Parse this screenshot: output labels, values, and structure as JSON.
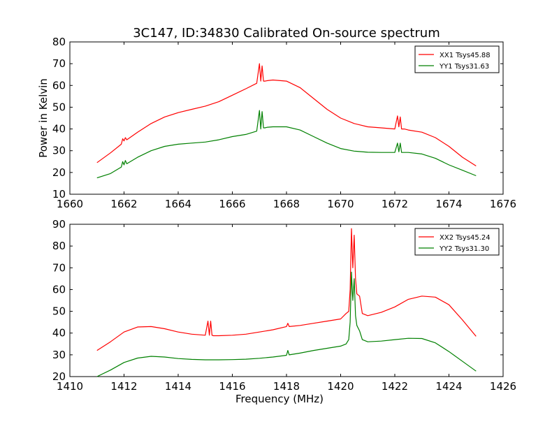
{
  "figure_title": "3C147, ID:34830 Calibrated On-source spectrum",
  "colors": {
    "xx": "#ff0000",
    "yy": "#008000",
    "axis": "#000000"
  },
  "chart_data": [
    {
      "type": "line",
      "xlabel": "",
      "ylabel": "Power in Kelvin",
      "xlim": [
        1660,
        1676
      ],
      "ylim": [
        10,
        80
      ],
      "xticks": [
        1660,
        1662,
        1664,
        1666,
        1668,
        1670,
        1672,
        1674,
        1676
      ],
      "yticks": [
        10,
        20,
        30,
        40,
        50,
        60,
        70,
        80
      ],
      "legend_position": "top-right",
      "series": [
        {
          "name": "XX1 Tsys45.88",
          "color": "#ff0000",
          "x": [
            1661,
            1661.5,
            1661.9,
            1661.95,
            1662.0,
            1662.05,
            1662.1,
            1662.5,
            1663,
            1663.5,
            1664,
            1664.5,
            1665,
            1665.5,
            1666,
            1666.5,
            1666.9,
            1667.0,
            1667.05,
            1667.1,
            1667.15,
            1667.2,
            1667.3,
            1667.5,
            1668,
            1668.5,
            1669,
            1669.5,
            1670,
            1670.5,
            1671,
            1671.5,
            1672,
            1672.1,
            1672.15,
            1672.2,
            1672.25,
            1672.3,
            1672.35,
            1672.5,
            1673,
            1673.5,
            1674,
            1674.5,
            1675
          ],
          "y": [
            24.5,
            29,
            33,
            35.5,
            34.5,
            36,
            35,
            38.5,
            42.5,
            45.5,
            47.5,
            49,
            50.5,
            52.5,
            55.5,
            58.5,
            61,
            70,
            62,
            69,
            62,
            62,
            62.2,
            62.5,
            62,
            59,
            54,
            49,
            45,
            42.5,
            41,
            40.5,
            40,
            46,
            41,
            45.5,
            40,
            40,
            40,
            39.5,
            38.5,
            36,
            32,
            27,
            23
          ]
        },
        {
          "name": "YY1 Tsys31.63",
          "color": "#008000",
          "x": [
            1661,
            1661.5,
            1661.9,
            1661.95,
            1662.0,
            1662.05,
            1662.1,
            1662.5,
            1663,
            1663.5,
            1664,
            1664.5,
            1665,
            1665.5,
            1666,
            1666.5,
            1666.9,
            1667.0,
            1667.05,
            1667.1,
            1667.15,
            1667.2,
            1667.3,
            1667.5,
            1668,
            1668.5,
            1669,
            1669.5,
            1670,
            1670.5,
            1671,
            1671.5,
            1672,
            1672.1,
            1672.15,
            1672.2,
            1672.25,
            1672.3,
            1672.35,
            1672.5,
            1673,
            1673.5,
            1674,
            1674.5,
            1675
          ],
          "y": [
            17.5,
            19.5,
            22.5,
            25,
            23.5,
            25.5,
            24,
            27,
            30,
            32,
            33,
            33.5,
            34,
            35,
            36.5,
            37.5,
            39,
            48.5,
            40,
            48,
            40.5,
            40.5,
            40.8,
            41,
            41,
            39.5,
            36.5,
            33.5,
            31,
            29.8,
            29.3,
            29.2,
            29.2,
            33.5,
            29.5,
            33.5,
            29.2,
            29.2,
            29.2,
            29.2,
            28.5,
            26.5,
            23.5,
            21,
            18.5
          ]
        }
      ]
    },
    {
      "type": "line",
      "xlabel": "Frequency (MHz)",
      "ylabel": "",
      "xlim": [
        1410,
        1426
      ],
      "ylim": [
        20,
        90
      ],
      "xticks": [
        1410,
        1412,
        1414,
        1416,
        1418,
        1420,
        1422,
        1424,
        1426
      ],
      "yticks": [
        20,
        30,
        40,
        50,
        60,
        70,
        80,
        90
      ],
      "legend_position": "top-right",
      "series": [
        {
          "name": "XX2 Tsys45.24",
          "color": "#ff0000",
          "x": [
            1411,
            1411.5,
            1412,
            1412.5,
            1413,
            1413.5,
            1414,
            1414.5,
            1415,
            1415.1,
            1415.15,
            1415.2,
            1415.25,
            1415.3,
            1415.5,
            1416,
            1416.5,
            1417,
            1417.5,
            1418,
            1418.05,
            1418.1,
            1418.5,
            1419,
            1419.5,
            1420,
            1420.2,
            1420.3,
            1420.35,
            1420.4,
            1420.45,
            1420.5,
            1420.55,
            1420.6,
            1420.7,
            1420.8,
            1421,
            1421.5,
            1422,
            1422.5,
            1423,
            1423.5,
            1424,
            1424.5,
            1425
          ],
          "y": [
            32,
            36,
            40.5,
            42.8,
            43,
            42,
            40.5,
            39.5,
            39,
            45.5,
            39,
            45.5,
            39,
            38.8,
            38.8,
            39,
            39.5,
            40.5,
            41.5,
            43,
            44.5,
            43,
            43.5,
            44.5,
            45.5,
            46.5,
            49,
            50,
            60,
            88,
            70,
            85,
            65,
            58,
            57,
            49,
            48,
            49.5,
            52,
            55.5,
            57,
            56.5,
            53,
            46,
            38.5
          ]
        },
        {
          "name": "YY2 Tsys31.30",
          "color": "#008000",
          "x": [
            1411,
            1411.5,
            1412,
            1412.5,
            1413,
            1413.5,
            1414,
            1414.5,
            1415,
            1415.5,
            1416,
            1416.5,
            1417,
            1417.5,
            1418,
            1418.05,
            1418.1,
            1418.5,
            1419,
            1419.5,
            1420,
            1420.2,
            1420.3,
            1420.35,
            1420.4,
            1420.45,
            1420.5,
            1420.55,
            1420.6,
            1420.7,
            1420.8,
            1421,
            1421.5,
            1422,
            1422.5,
            1423,
            1423.5,
            1424,
            1424.5,
            1425
          ],
          "y": [
            20,
            23,
            26.5,
            28.5,
            29.3,
            29,
            28.3,
            27.9,
            27.7,
            27.7,
            27.8,
            28,
            28.4,
            29,
            29.8,
            32,
            30,
            30.8,
            32,
            33,
            34,
            35,
            37,
            45,
            68,
            55,
            65,
            48,
            43.5,
            41,
            37,
            36,
            36.3,
            37,
            37.6,
            37.5,
            35.5,
            31.5,
            27,
            22.5
          ]
        }
      ]
    }
  ]
}
